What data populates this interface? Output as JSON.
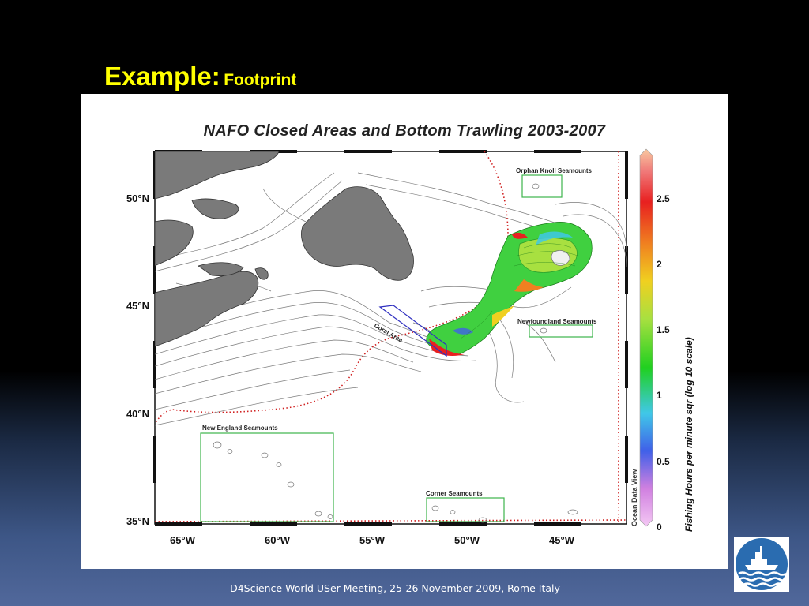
{
  "slide": {
    "title_main": "Example:",
    "title_sub": "Footprint",
    "footer": "D4Science World USer Meeting, 25-26 November 2009, Rome Italy"
  },
  "map": {
    "title": "NAFO Closed Areas and Bottom Trawling 2003-2007",
    "lat_labels": [
      "50°N",
      "45°N",
      "40°N",
      "35°N"
    ],
    "lon_labels": [
      "65°W",
      "60°W",
      "55°W",
      "50°W",
      "45°W"
    ],
    "areas": {
      "orphan_knoll": "Orphan Knoll Seamounts",
      "newfoundland": "Newfoundland Seamounts",
      "new_england": "New England Seamounts",
      "corner": "Corner Seamounts",
      "coral": "Coral Area"
    },
    "watermark": "Ocean Data View"
  },
  "colorbar": {
    "label": "Fishing Hours per minute sqr (log 10 scale)",
    "ticks": [
      "0",
      "0.5",
      "1",
      "1.5",
      "2",
      "2.5"
    ]
  },
  "colors": {
    "land": "#7a7a7a",
    "eez_line": "#d02020",
    "seamount_box": "#3cb44b",
    "coral_box": "#3030c0",
    "title_yellow": "#ffff00"
  }
}
